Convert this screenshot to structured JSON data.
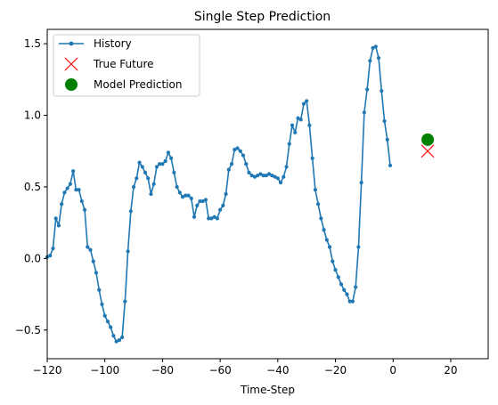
{
  "chart_data": {
    "type": "line",
    "title": "Single Step Prediction",
    "xlabel": "Time-Step",
    "ylabel": "",
    "xlim": [
      -120,
      33
    ],
    "ylim": [
      -0.7,
      1.6
    ],
    "xticks": [
      -120,
      -100,
      -80,
      -60,
      -40,
      -20,
      0,
      20
    ],
    "yticks": [
      -0.5,
      0.0,
      0.5,
      1.0,
      1.5
    ],
    "xtick_labels": [
      "−120",
      "−100",
      "−80",
      "−60",
      "−40",
      "−20",
      "0",
      "20"
    ],
    "ytick_labels": [
      "−0.5",
      "0.0",
      "0.5",
      "1.0",
      "1.5"
    ],
    "grid": false,
    "legend_position": "top-left",
    "legend": [
      {
        "label": "History",
        "marker": "line-dot",
        "color": "#1f77b4"
      },
      {
        "label": "True Future",
        "marker": "x",
        "color": "#ff0000"
      },
      {
        "label": "Model Prediction",
        "marker": "circle",
        "color": "#008000"
      }
    ],
    "series": [
      {
        "name": "History",
        "color": "#1f77b4",
        "x": [
          -120,
          -119,
          -118,
          -117,
          -116,
          -115,
          -114,
          -113,
          -112,
          -111,
          -110,
          -109,
          -108,
          -107,
          -106,
          -105,
          -104,
          -103,
          -102,
          -101,
          -100,
          -99,
          -98,
          -97,
          -96,
          -95,
          -94,
          -93,
          -92,
          -91,
          -90,
          -89,
          -88,
          -87,
          -86,
          -85,
          -84,
          -83,
          -82,
          -81,
          -80,
          -79,
          -78,
          -77,
          -76,
          -75,
          -74,
          -73,
          -72,
          -71,
          -70,
          -69,
          -68,
          -67,
          -66,
          -65,
          -64,
          -63,
          -62,
          -61,
          -60,
          -59,
          -58,
          -57,
          -56,
          -55,
          -54,
          -53,
          -52,
          -51,
          -50,
          -49,
          -48,
          -47,
          -46,
          -45,
          -44,
          -43,
          -42,
          -41,
          -40,
          -39,
          -38,
          -37,
          -36,
          -35,
          -34,
          -33,
          -32,
          -31,
          -30,
          -29,
          -28,
          -27,
          -26,
          -25,
          -24,
          -23,
          -22,
          -21,
          -20,
          -19,
          -18,
          -17,
          -16,
          -15,
          -14,
          -13,
          -12,
          -11,
          -10,
          -9,
          -8,
          -7,
          -6,
          -5,
          -4,
          -3,
          -2,
          -1
        ],
        "y": [
          0.01,
          0.02,
          0.07,
          0.28,
          0.23,
          0.38,
          0.46,
          0.49,
          0.52,
          0.61,
          0.48,
          0.48,
          0.4,
          0.34,
          0.08,
          0.06,
          -0.02,
          -0.1,
          -0.22,
          -0.32,
          -0.4,
          -0.44,
          -0.48,
          -0.54,
          -0.58,
          -0.57,
          -0.55,
          -0.3,
          0.05,
          0.33,
          0.5,
          0.56,
          0.67,
          0.64,
          0.6,
          0.56,
          0.45,
          0.52,
          0.64,
          0.66,
          0.66,
          0.68,
          0.74,
          0.7,
          0.6,
          0.5,
          0.46,
          0.43,
          0.44,
          0.44,
          0.42,
          0.29,
          0.37,
          0.4,
          0.4,
          0.41,
          0.28,
          0.28,
          0.29,
          0.28,
          0.34,
          0.37,
          0.45,
          0.62,
          0.66,
          0.76,
          0.77,
          0.75,
          0.72,
          0.66,
          0.6,
          0.58,
          0.57,
          0.58,
          0.59,
          0.58,
          0.58,
          0.59,
          0.58,
          0.57,
          0.56,
          0.53,
          0.57,
          0.64,
          0.8,
          0.93,
          0.88,
          0.98,
          0.97,
          1.08,
          1.1,
          0.93,
          0.7,
          0.48,
          0.38,
          0.28,
          0.2,
          0.13,
          0.08,
          -0.02,
          -0.08,
          -0.13,
          -0.18,
          -0.22,
          -0.25,
          -0.3,
          -0.3,
          -0.2,
          0.08,
          0.53,
          1.02,
          1.18,
          1.38,
          1.47,
          1.48,
          1.4,
          1.17,
          0.96,
          0.83,
          0.65
        ]
      }
    ],
    "true_future": {
      "x": 12,
      "y": 0.75,
      "color": "#ff0000"
    },
    "model_prediction": {
      "x": 12,
      "y": 0.83,
      "color": "#008000"
    }
  }
}
